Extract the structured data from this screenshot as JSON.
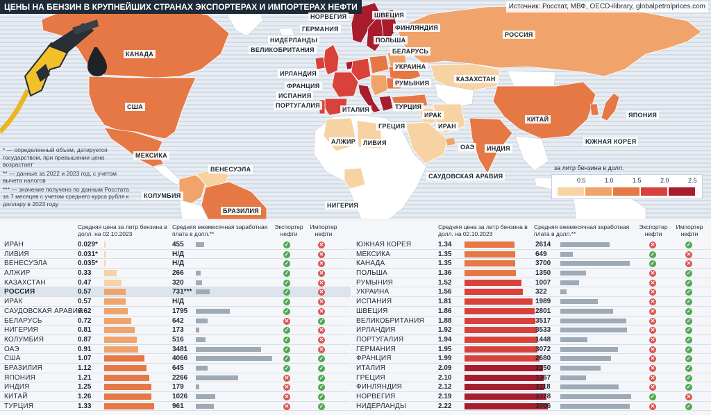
{
  "title": "ЦЕНЫ НА БЕНЗИН В КРУПНЕЙШИХ СТРАНАХ ЭКСПОРТЕРАХ И ИМПОРТЕРАХ НЕФТИ",
  "source": "Источник: Росстат, МВФ, OECD-ilibrary, globalpetrolprices.com",
  "footnotes": [
    "* — определенный объем, датируется государством, при превышении цена возрастает",
    "** — данные за 2022 и 2023 год, с учетом вычета налогов",
    "*** — значение получено по данным Росстата за 7 месяцев с учетом среднего курса рубля к доллару в 2023 году"
  ],
  "legend": {
    "title": "за литр бензина в долл.",
    "ticks": [
      "0.5",
      "1.0",
      "1.5",
      "2.0",
      "2.5"
    ],
    "colors": [
      "#f7d3a4",
      "#f0a36a",
      "#e57845",
      "#d8423a",
      "#a81d2e"
    ]
  },
  "map_labels": [
    "НОРВЕГИЯ",
    "ШВЕЦИЯ",
    "ФИНЛЯНДИЯ",
    "ГЕРМАНИЯ",
    "НИДЕРЛАНДЫ",
    "ПОЛЬША",
    "РОССИЯ",
    "ВЕЛИКОБРИТАНИЯ",
    "БЕЛАРУСЬ",
    "КАНАДА",
    "УКРАИНА",
    "ИРЛАНДИЯ",
    "РУМЫНИЯ",
    "ФРАНЦИЯ",
    "КАЗАХСТАН",
    "ИСПАНИЯ",
    "ПОРТУГАЛИЯ",
    "ТУРЦИЯ",
    "США",
    "ИТАЛИЯ",
    "ИРАК",
    "КИТАЙ",
    "ЯПОНИЯ",
    "ИРАН",
    "ГРЕЦИЯ",
    "АЛЖИР",
    "ЛИВИЯ",
    "ОАЭ",
    "ЮЖНАЯ КОРЕЯ",
    "МЕКСИКА",
    "ИНДИЯ",
    "ВЕНЕСУЭЛА",
    "САУДОВСКАЯ АРАВИЯ",
    "КОЛУМБИЯ",
    "НИГЕРИЯ",
    "БРАЗИЛИЯ"
  ],
  "headers": {
    "price": "Средняя цена за литр бензина в долл. на 02.10.2023",
    "salary": "Средняя ежемесячная заработная плата в долл.**",
    "exporter": "Экспортер нефти",
    "importer": "Импортер нефти"
  },
  "chart_data": {
    "type": "table",
    "price_max": 2.22,
    "salary_max": 4066,
    "left": [
      {
        "country": "ИРАН",
        "price": 0.029,
        "price_label": "0.029*",
        "salary": 455,
        "salary_label": "455",
        "exporter": true,
        "importer": false
      },
      {
        "country": "ЛИВИЯ",
        "price": 0.031,
        "price_label": "0.031*",
        "salary": null,
        "salary_label": "Н/Д",
        "exporter": true,
        "importer": false
      },
      {
        "country": "ВЕНЕСУЭЛА",
        "price": 0.035,
        "price_label": "0.035*",
        "salary": null,
        "salary_label": "Н/Д",
        "exporter": true,
        "importer": false
      },
      {
        "country": "АЛЖИР",
        "price": 0.33,
        "price_label": "0.33",
        "salary": 266,
        "salary_label": "266",
        "exporter": true,
        "importer": false
      },
      {
        "country": "КАЗАХСТАН",
        "price": 0.47,
        "price_label": "0.47",
        "salary": 320,
        "salary_label": "320",
        "exporter": true,
        "importer": false
      },
      {
        "country": "РОССИЯ",
        "price": 0.57,
        "price_label": "0.57",
        "salary": 731,
        "salary_label": "731***",
        "exporter": true,
        "importer": false,
        "highlight": true
      },
      {
        "country": "ИРАК",
        "price": 0.57,
        "price_label": "0.57",
        "salary": null,
        "salary_label": "Н/Д",
        "exporter": true,
        "importer": false
      },
      {
        "country": "САУДОВСКАЯ АРАВИЯ",
        "price": 0.62,
        "price_label": "0.62",
        "salary": 1795,
        "salary_label": "1795",
        "exporter": true,
        "importer": false
      },
      {
        "country": "БЕЛАРУСЬ",
        "price": 0.72,
        "price_label": "0.72",
        "salary": 642,
        "salary_label": "642",
        "exporter": false,
        "importer": true
      },
      {
        "country": "НИГЕРИЯ",
        "price": 0.81,
        "price_label": "0.81",
        "salary": 173,
        "salary_label": "173",
        "exporter": true,
        "importer": false
      },
      {
        "country": "КОЛУМБИЯ",
        "price": 0.87,
        "price_label": "0.87",
        "salary": 516,
        "salary_label": "516",
        "exporter": true,
        "importer": false
      },
      {
        "country": "ОАЭ",
        "price": 0.91,
        "price_label": "0.91",
        "salary": 3481,
        "salary_label": "3481",
        "exporter": true,
        "importer": false
      },
      {
        "country": "США",
        "price": 1.07,
        "price_label": "1.07",
        "salary": 4066,
        "salary_label": "4066",
        "exporter": true,
        "importer": true
      },
      {
        "country": "БРАЗИЛИЯ",
        "price": 1.12,
        "price_label": "1.12",
        "salary": 645,
        "salary_label": "645",
        "exporter": true,
        "importer": true
      },
      {
        "country": "ЯПОНИЯ",
        "price": 1.21,
        "price_label": "1.21",
        "salary": 2266,
        "salary_label": "2266",
        "exporter": false,
        "importer": true
      },
      {
        "country": "ИНДИЯ",
        "price": 1.25,
        "price_label": "1.25",
        "salary": 179,
        "salary_label": "179",
        "exporter": false,
        "importer": true
      },
      {
        "country": "КИТАЙ",
        "price": 1.26,
        "price_label": "1.26",
        "salary": 1026,
        "salary_label": "1026",
        "exporter": false,
        "importer": true
      },
      {
        "country": "ТУРЦИЯ",
        "price": 1.33,
        "price_label": "1.33",
        "salary": 961,
        "salary_label": "961",
        "exporter": false,
        "importer": true
      }
    ],
    "right": [
      {
        "country": "ЮЖНАЯ КОРЕЯ",
        "price": 1.34,
        "price_label": "1.34",
        "salary": 2614,
        "salary_label": "2614",
        "exporter": false,
        "importer": true
      },
      {
        "country": "МЕКСИКА",
        "price": 1.35,
        "price_label": "1.35",
        "salary": 649,
        "salary_label": "649",
        "exporter": true,
        "importer": false
      },
      {
        "country": "КАНАДА",
        "price": 1.35,
        "price_label": "1.35",
        "salary": 3700,
        "salary_label": "3700",
        "exporter": true,
        "importer": false
      },
      {
        "country": "ПОЛЬША",
        "price": 1.36,
        "price_label": "1.36",
        "salary": 1350,
        "salary_label": "1350",
        "exporter": false,
        "importer": true
      },
      {
        "country": "РУМЫНИЯ",
        "price": 1.52,
        "price_label": "1.52",
        "salary": 1007,
        "salary_label": "1007",
        "exporter": false,
        "importer": true
      },
      {
        "country": "УКРАИНА",
        "price": 1.56,
        "price_label": "1.56",
        "salary": 322,
        "salary_label": "322",
        "exporter": false,
        "importer": true
      },
      {
        "country": "ИСПАНИЯ",
        "price": 1.81,
        "price_label": "1.81",
        "salary": 1989,
        "salary_label": "1989",
        "exporter": false,
        "importer": true
      },
      {
        "country": "ШВЕЦИЯ",
        "price": 1.86,
        "price_label": "1.86",
        "salary": 2801,
        "salary_label": "2801",
        "exporter": false,
        "importer": true
      },
      {
        "country": "ВЕЛИКОБРИТАНИЯ",
        "price": 1.88,
        "price_label": "1.88",
        "salary": 3517,
        "salary_label": "3517",
        "exporter": false,
        "importer": true
      },
      {
        "country": "ИРЛАНДИЯ",
        "price": 1.92,
        "price_label": "1.92",
        "salary": 3533,
        "salary_label": "3533",
        "exporter": false,
        "importer": true
      },
      {
        "country": "ПОРТУГАЛИЯ",
        "price": 1.94,
        "price_label": "1.94",
        "salary": 1448,
        "salary_label": "1448",
        "exporter": false,
        "importer": true
      },
      {
        "country": "ГЕРМАНИЯ",
        "price": 1.95,
        "price_label": "1.95",
        "salary": 3072,
        "salary_label": "3072",
        "exporter": false,
        "importer": true
      },
      {
        "country": "ФРАНЦИЯ",
        "price": 1.99,
        "price_label": "1.99",
        "salary": 2680,
        "salary_label": "2680",
        "exporter": false,
        "importer": true
      },
      {
        "country": "ИТАЛИЯ",
        "price": 2.09,
        "price_label": "2.09",
        "salary": 2150,
        "salary_label": "2150",
        "exporter": false,
        "importer": true
      },
      {
        "country": "ГРЕЦИЯ",
        "price": 2.1,
        "price_label": "2.10",
        "salary": 1367,
        "salary_label": "1367",
        "exporter": false,
        "importer": true
      },
      {
        "country": "ФИНЛЯНДИЯ",
        "price": 2.12,
        "price_label": "2.12",
        "salary": 3118,
        "salary_label": "3118",
        "exporter": false,
        "importer": true
      },
      {
        "country": "НОРВЕГИЯ",
        "price": 2.19,
        "price_label": "2.19",
        "salary": 3778,
        "salary_label": "3778",
        "exporter": true,
        "importer": false
      },
      {
        "country": "НИДЕРЛАНДЫ",
        "price": 2.22,
        "price_label": "2.22",
        "salary": 3706,
        "salary_label": "3706",
        "exporter": false,
        "importer": true
      }
    ]
  }
}
